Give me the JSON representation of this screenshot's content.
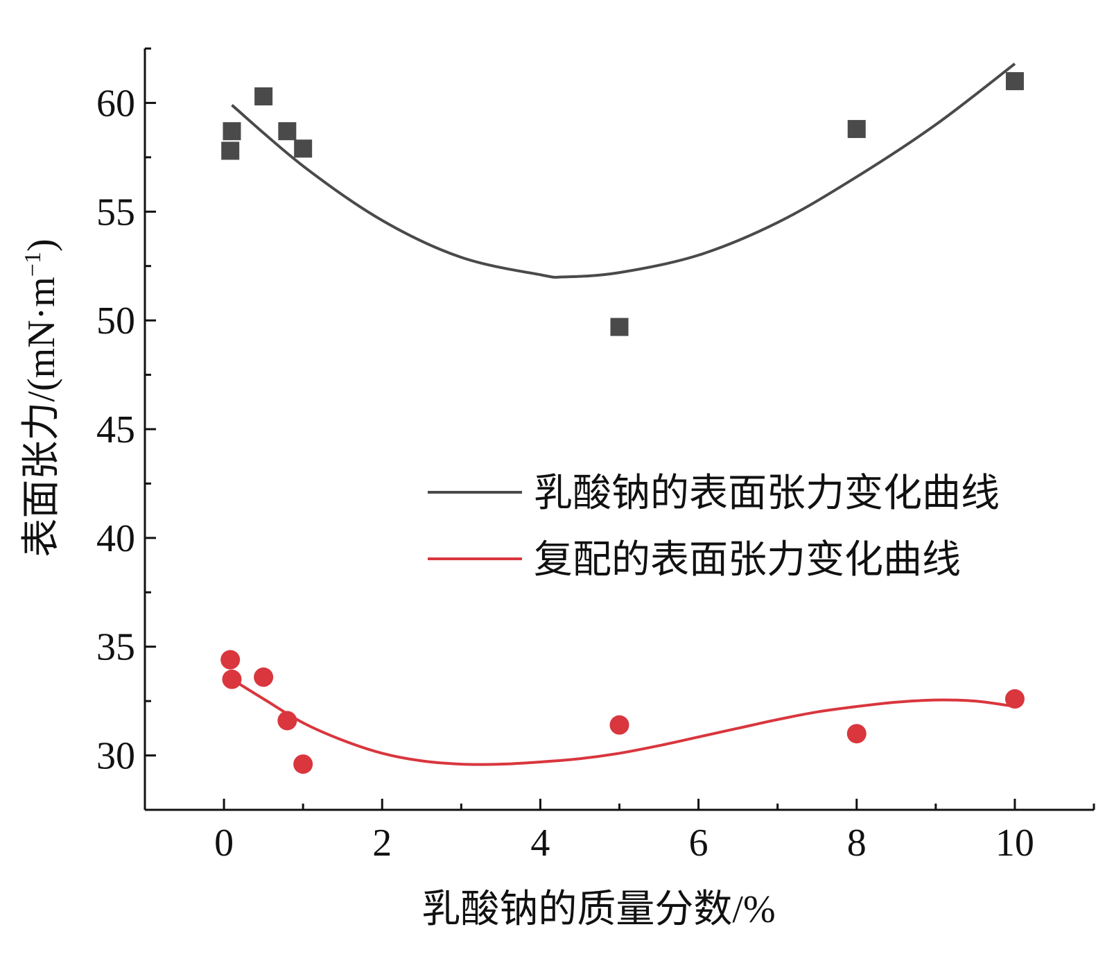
{
  "chart_data": {
    "type": "scatter",
    "title": "",
    "xlabel": "乳酸钠的质量分数/%",
    "ylabel_parts": {
      "main": "表面张力/(mN·m",
      "sup": "−1",
      "close": ")"
    },
    "xlim": [
      -1,
      11
    ],
    "ylim": [
      27.5,
      62.5
    ],
    "xticks": [
      0,
      2,
      4,
      6,
      8,
      10
    ],
    "yticks": [
      30,
      35,
      40,
      45,
      50,
      55,
      60
    ],
    "grid": false,
    "legend_position": "middle-right",
    "series": [
      {
        "name": "乳酸钠的表面张力变化曲线",
        "color": "#4a4a4a",
        "marker": "square",
        "x": [
          0.08,
          0.1,
          0.5,
          0.8,
          1.0,
          5.0,
          8.0,
          10.0
        ],
        "y": [
          57.8,
          58.7,
          60.3,
          58.7,
          57.9,
          49.7,
          58.8,
          61.0
        ],
        "fit_curve": {
          "x": [
            0.1,
            1,
            2,
            3,
            4,
            4.3,
            5,
            6,
            7,
            8,
            9,
            10
          ],
          "y": [
            59.9,
            57.1,
            54.6,
            52.9,
            52.1,
            52.0,
            52.2,
            53.0,
            54.5,
            56.6,
            59.0,
            61.8
          ]
        }
      },
      {
        "name": "复配的表面张力变化曲线",
        "color": "#d9363e",
        "marker": "circle",
        "x": [
          0.08,
          0.1,
          0.5,
          0.8,
          1.0,
          5.0,
          8.0,
          10.0
        ],
        "y": [
          34.4,
          33.5,
          33.6,
          31.6,
          29.6,
          31.4,
          31.0,
          32.6
        ],
        "fit_curve": {
          "x": [
            0.1,
            0.5,
            1,
            1.5,
            2,
            2.5,
            3,
            3.5,
            4,
            4.5,
            5,
            5.5,
            6,
            6.5,
            7,
            7.5,
            8,
            8.5,
            9,
            9.5,
            10
          ],
          "y": [
            33.5,
            32.6,
            31.5,
            30.7,
            30.1,
            29.75,
            29.6,
            29.6,
            29.7,
            29.85,
            30.1,
            30.45,
            30.85,
            31.25,
            31.65,
            32.0,
            32.25,
            32.45,
            32.55,
            32.5,
            32.25
          ]
        }
      }
    ]
  }
}
